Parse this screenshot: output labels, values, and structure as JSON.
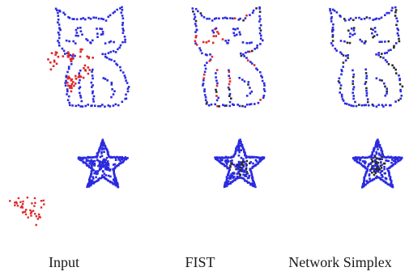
{
  "figure": {
    "columns": [
      {
        "label": "Input",
        "method": "input"
      },
      {
        "label": "FIST",
        "method": "fist"
      },
      {
        "label": "Network Simplex",
        "method": "network_simplex"
      }
    ],
    "colors": {
      "target": "#2a2adf",
      "source": "#e02a2a",
      "mapped": "#2b2b2b",
      "background": "#ffffff"
    },
    "rows": [
      {
        "target_shape": "cat",
        "source_shape": "heart"
      },
      {
        "target_shape": "star",
        "source_shape": "triangle"
      }
    ]
  }
}
